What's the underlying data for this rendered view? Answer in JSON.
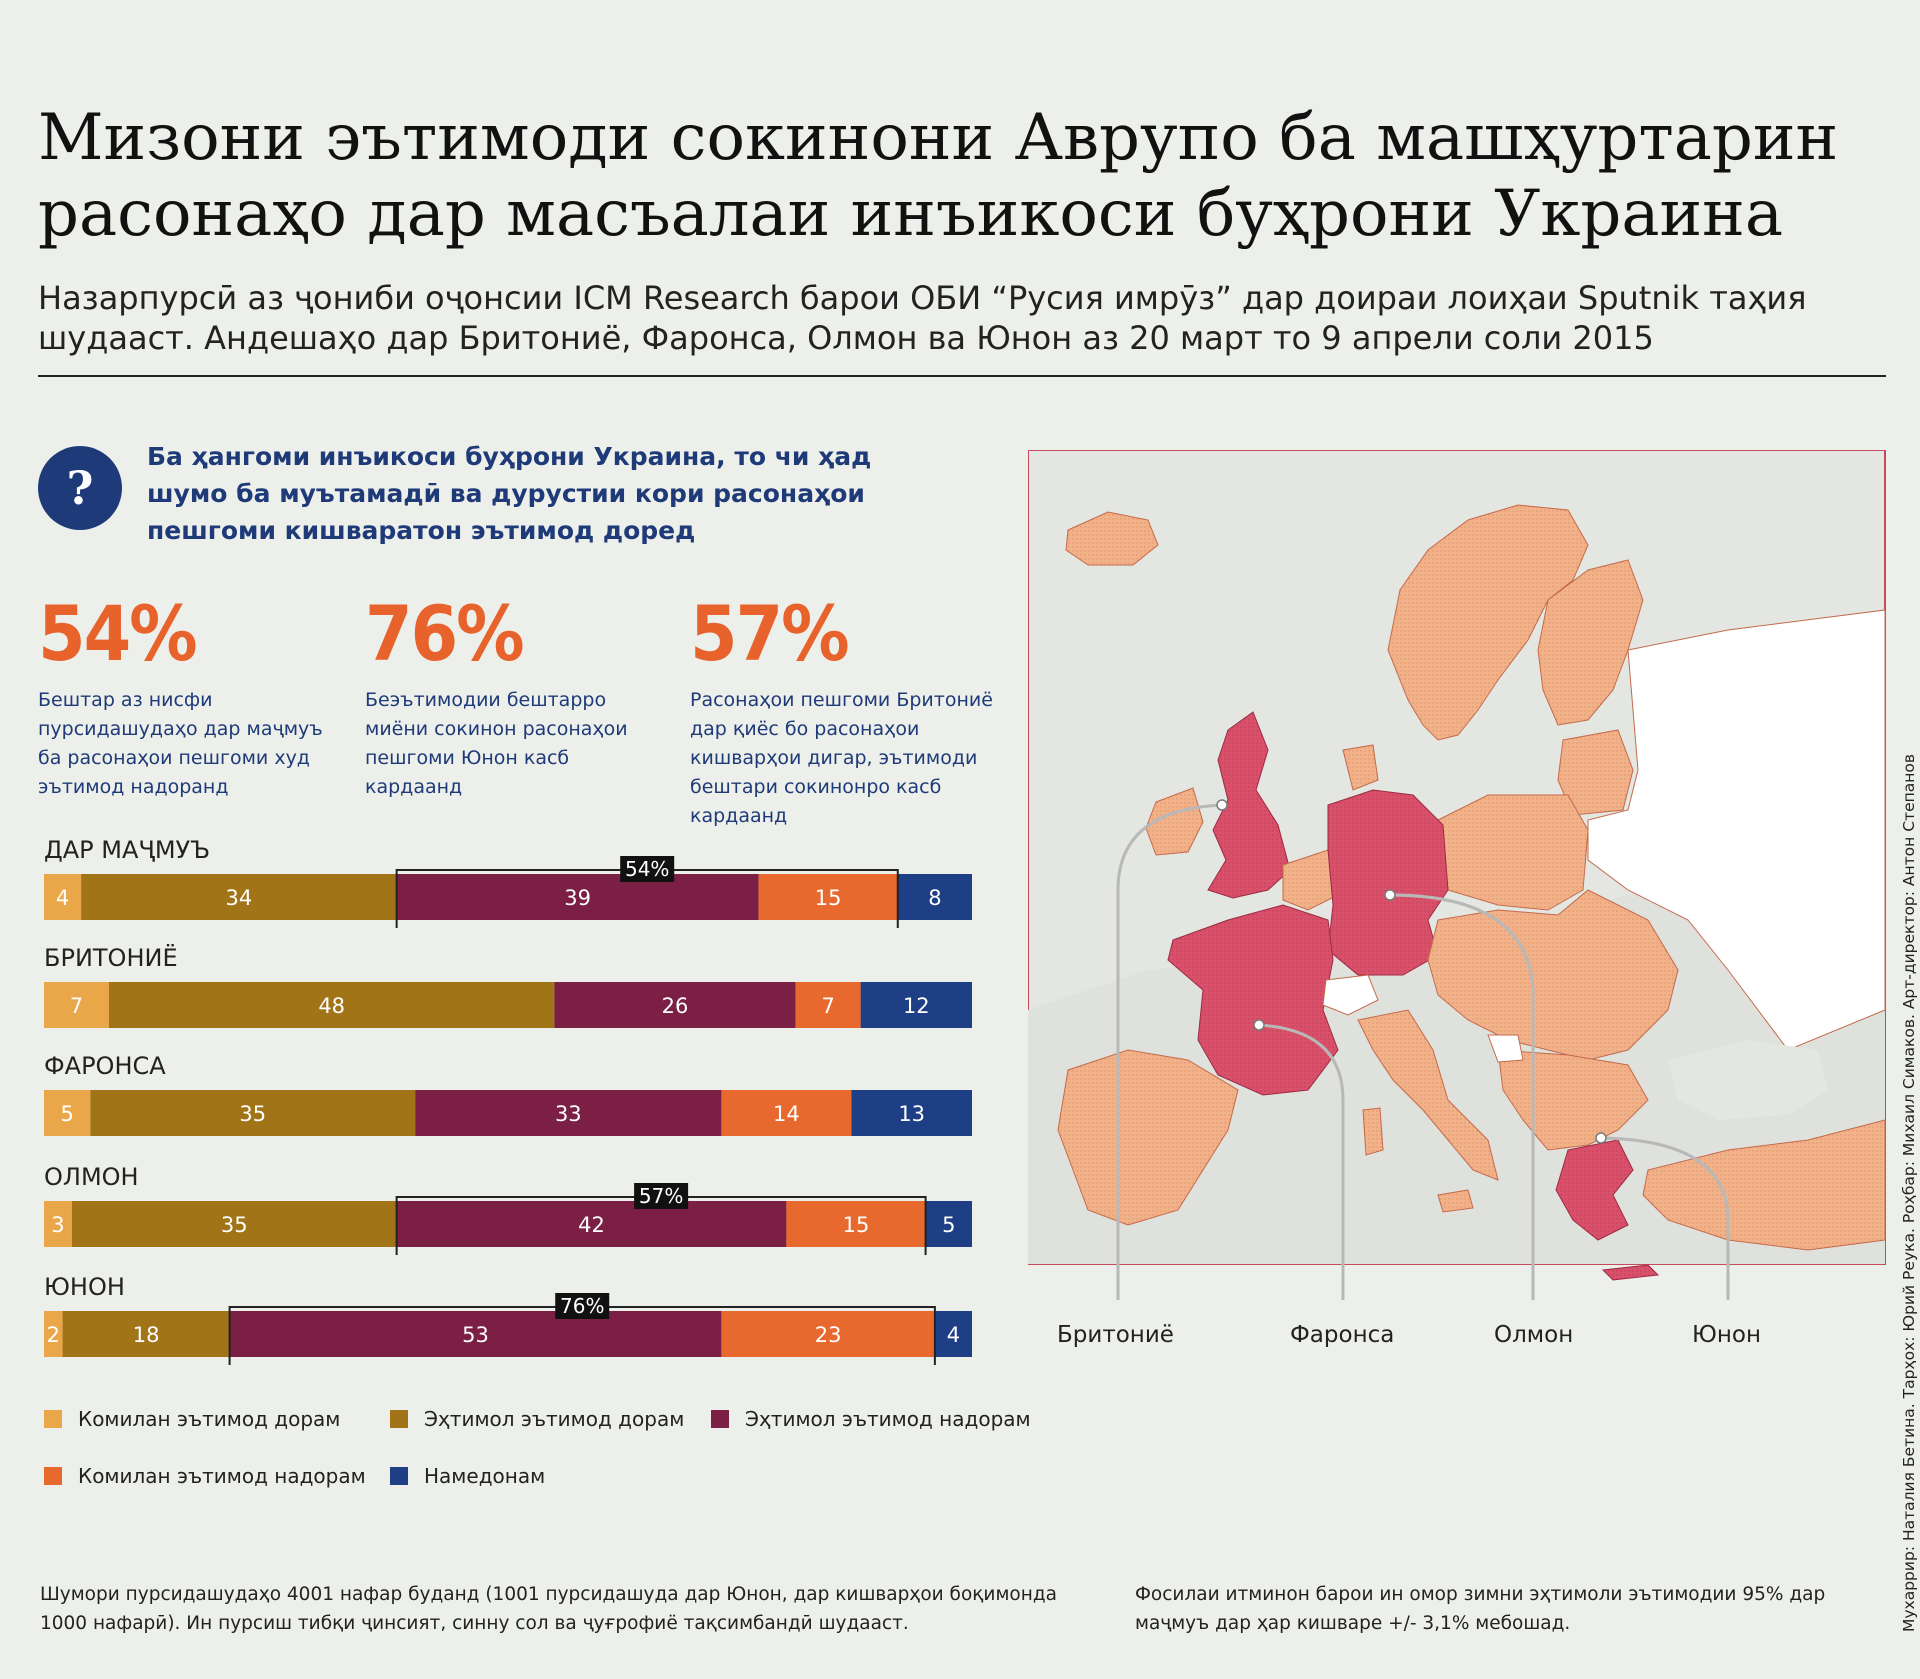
{
  "title": "Мизони эътимоди сокинони Аврупо ба машҳуртарин расонаҳо дар масъалаи инъикоси буҳрони Украина",
  "subtitle": "Назарпурсӣ аз ҷониби оҷонсии ICM Research барои ОБИ “Русия имрӯз” дар доираи лоиҳаи Sputnik таҳия шудааст. Андешаҳо дар Бритониё, Фаронса, Олмон ва Юнон аз 20 март то 9 апрели соли 2015",
  "question_icon": "?",
  "question": "Ба ҳангоми инъикоси буҳрони Украина, то чи ҳад шумо ба муътамадӣ ва дурустии кори расонаҳои пешгоми кишваратон эътимод доред",
  "stats": [
    {
      "value": "54%",
      "text": "Бештар аз нисфи пурсидашудаҳо дар маҷмуъ ба расонаҳои пешгоми худ эътимод надоранд"
    },
    {
      "value": "76%",
      "text": "Беэътимодии бештарро миёни сокинон расонаҳои пешгоми Юнон касб кардаанд"
    },
    {
      "value": "57%",
      "text": "Расонаҳои пешгоми Бритониё дар қиёс бо расонаҳои кишварҳои дигар, эътимоди бештари сокинонро касб кардаанд"
    }
  ],
  "chart_data": {
    "type": "bar",
    "orientation": "horizontal",
    "stacked": true,
    "normalized": true,
    "categories": [
      "ДАР МАҶМУЪ",
      "БРИТОНИЁ",
      "ФАРОНСА",
      "ОЛМОН",
      "ЮНОН"
    ],
    "series": [
      {
        "name": "Комилан эътимод дорам",
        "color": "#e9a74a",
        "values": [
          4,
          7,
          5,
          3,
          2
        ]
      },
      {
        "name": "Эҳтимол эътимод дорам",
        "color": "#a27418",
        "values": [
          34,
          48,
          35,
          35,
          18
        ]
      },
      {
        "name": "Эҳтимол эътимод надорам",
        "color": "#7c1f44",
        "values": [
          39,
          26,
          33,
          42,
          53
        ]
      },
      {
        "name": "Комилан эътимод надорам",
        "color": "#e8692e",
        "values": [
          15,
          7,
          14,
          15,
          23
        ]
      },
      {
        "name": "Намедонам",
        "color": "#1e3f86",
        "values": [
          8,
          12,
          13,
          5,
          4
        ]
      }
    ],
    "brackets": [
      {
        "category": "ДАР МАҶМУЪ",
        "label": "54%",
        "from_series": 2,
        "to_series": 3
      },
      {
        "category": "ОЛМОН",
        "label": "57%",
        "from_series": 2,
        "to_series": 3
      },
      {
        "category": "ЮНОН",
        "label": "76%",
        "from_series": 2,
        "to_series": 3
      }
    ]
  },
  "legend": [
    {
      "label": "Комилан эътимод дорам",
      "color": "#e9a74a"
    },
    {
      "label": "Эҳтимол эътимод дорам",
      "color": "#a27418"
    },
    {
      "label": "Эҳтимол эътимод надорам",
      "color": "#7c1f44"
    },
    {
      "label": "Комилан эътимод надорам",
      "color": "#e8692e"
    },
    {
      "label": "Намедонам",
      "color": "#1e3f86"
    }
  ],
  "map": {
    "highlight_color": "#d9506a",
    "base_color": "#f1b28a",
    "other_color": "#ffffff",
    "labels": [
      "Бритониё",
      "Фаронса",
      "Олмон",
      "Юнон"
    ]
  },
  "footnote_left": "Шумори пурсидашудаҳо 4001 нафар буданд (1001 пурсидашуда дар Юнон, дар кишварҳои боқимонда 1000 нафарӣ). Ин пурсиш тибқи ҷинсият, синну сол ва ҷуғрофиё тақсимбандӣ шудааст.",
  "footnote_right": "Фосилаи итминон барои ин омор зимни эҳтимоли эътимодии 95% дар маҷмуъ дар ҳар кишваре +/- 3,1% мебошад.",
  "credits": "Мухаррир: Наталия Бетина. Тарҳох: Юрий Реука. Роҳбар: Михаил Симаков. Арт-директор: Антон Степанов"
}
